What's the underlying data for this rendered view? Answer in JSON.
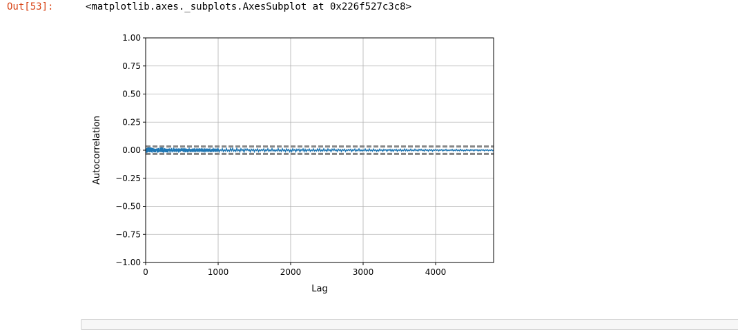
{
  "output": {
    "prompt": "Out[53]:",
    "repr": "<matplotlib.axes._subplots.AxesSubplot at 0x226f527c3c8>"
  },
  "chart_data": {
    "type": "line",
    "title": "",
    "xlabel": "Lag",
    "ylabel": "Autocorrelation",
    "xlim": [
      0,
      4800
    ],
    "ylim": [
      -1.0,
      1.0
    ],
    "xticks": [
      0,
      1000,
      2000,
      3000,
      4000
    ],
    "xtick_labels": [
      "0",
      "1000",
      "2000",
      "3000",
      "4000"
    ],
    "yticks": [
      1.0,
      0.75,
      0.5,
      0.25,
      0.0,
      -0.25,
      -0.5,
      -0.75,
      -1.0
    ],
    "ytick_labels": [
      "1.00",
      "0.75",
      "0.50",
      "0.25",
      "0.00",
      "−0.25",
      "−0.50",
      "−0.75",
      "−1.00"
    ],
    "grid": true,
    "series": [
      {
        "color": "#1f77b4",
        "description": "autocorrelation values oscillating near zero across all lags",
        "x": [
          1,
          50,
          100,
          150,
          200,
          250,
          300,
          400,
          500,
          600,
          700,
          800,
          900,
          1000,
          1200,
          1400,
          1600,
          1800,
          2000,
          2200,
          2400,
          2600,
          2800,
          3000,
          3200,
          3400,
          3600,
          3800,
          4000,
          4200,
          4400,
          4600,
          4800
        ],
        "y": [
          0.02,
          -0.02,
          0.015,
          -0.018,
          0.02,
          -0.015,
          0.018,
          -0.012,
          0.015,
          -0.014,
          0.013,
          -0.012,
          0.012,
          -0.011,
          0.012,
          -0.01,
          0.01,
          -0.01,
          0.01,
          -0.008,
          0.009,
          -0.008,
          0.008,
          -0.007,
          0.006,
          -0.006,
          0.005,
          -0.005,
          0.004,
          -0.004,
          0.003,
          -0.002,
          0.0
        ]
      }
    ],
    "confidence_bands": {
      "color": "#808080",
      "style": "dashed",
      "values": [
        0.0283,
        0.0373,
        -0.0283,
        -0.0373
      ]
    }
  }
}
